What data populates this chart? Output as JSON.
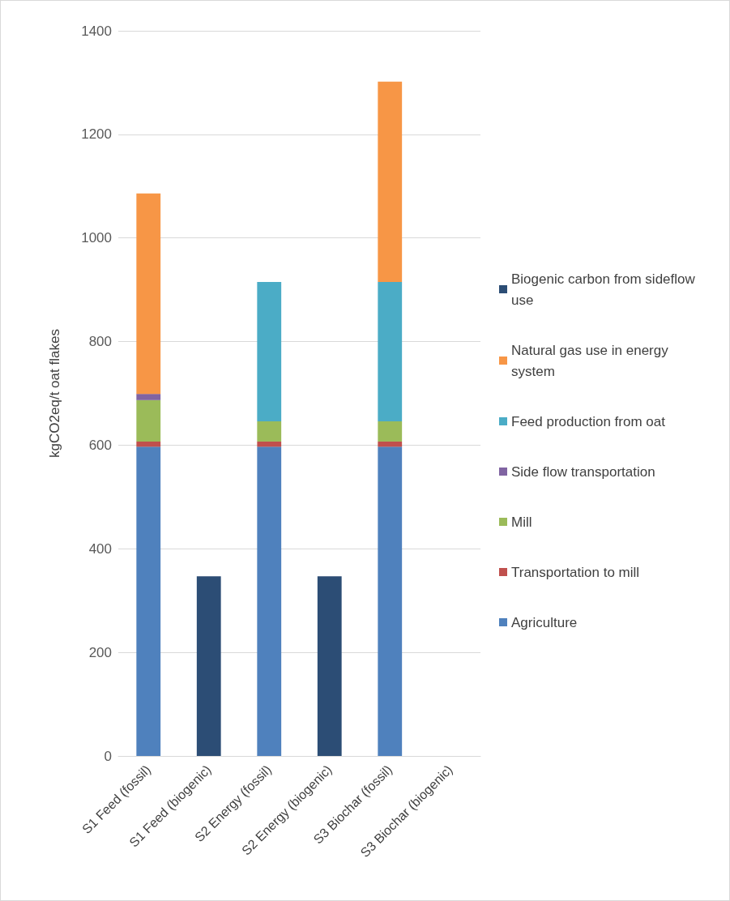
{
  "chart_data": {
    "type": "bar",
    "stacked": true,
    "ylabel": "kgCO2eq/t oat flakes",
    "categories": [
      "S1 Feed (fossil)",
      "S1 Feed (biogenic)",
      "S2 Energy (fossil)",
      "S2 Energy (biogenic)",
      "S3 Biochar (fossil)",
      "S3 Biochar (biogenic)"
    ],
    "series": [
      {
        "name": "Agriculture",
        "color": "#4f81bd",
        "values": [
          597,
          null,
          597,
          null,
          597,
          null
        ]
      },
      {
        "name": "Transportation to mill",
        "color": "#c0504d",
        "values": [
          10,
          null,
          10,
          null,
          10,
          null
        ]
      },
      {
        "name": "Mill",
        "color": "#9bbb59",
        "values": [
          80,
          null,
          39,
          null,
          39,
          null
        ]
      },
      {
        "name": "Side flow transportation",
        "color": "#8064a2",
        "values": [
          12,
          null,
          null,
          null,
          null,
          null
        ]
      },
      {
        "name": "Feed production from oat",
        "color": "#4bacc6",
        "values": [
          null,
          null,
          269,
          null,
          269,
          null
        ]
      },
      {
        "name": "Natural gas use in energy system",
        "color": "#f79646",
        "values": [
          387,
          null,
          null,
          null,
          387,
          null
        ]
      },
      {
        "name": "Biogenic carbon from sideflow use",
        "color": "#2c4d75",
        "values": [
          null,
          347,
          null,
          347,
          null,
          null
        ]
      }
    ],
    "ylim": [
      0,
      1400
    ],
    "yticks": [
      0,
      200,
      400,
      600,
      800,
      1000,
      1200,
      1400
    ],
    "grid": "y",
    "legend": "right"
  }
}
